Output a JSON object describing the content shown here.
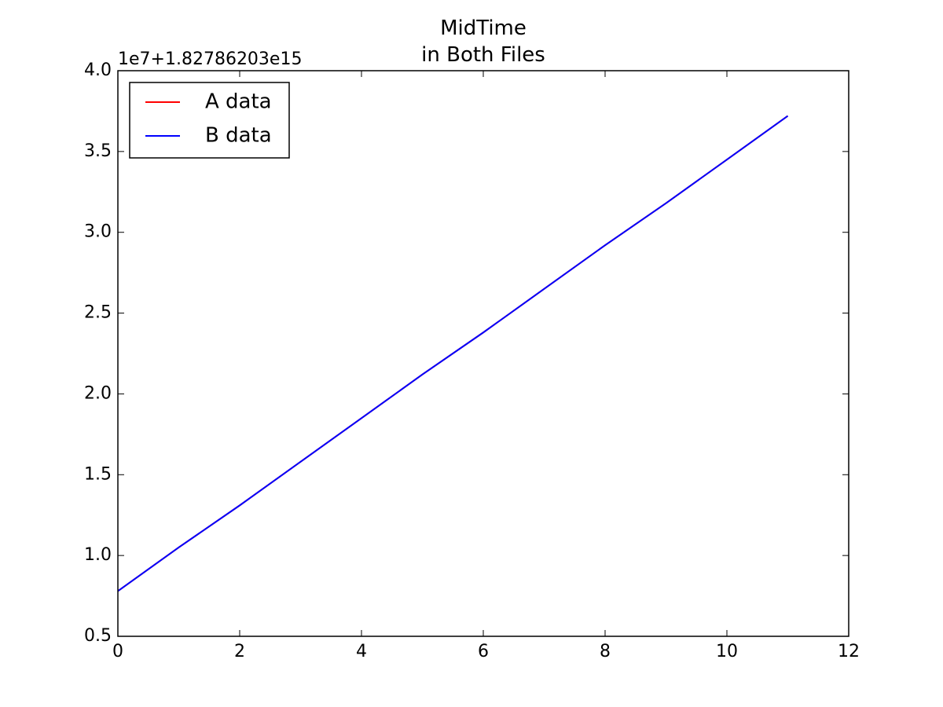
{
  "chart_data": {
    "type": "line",
    "title": "MidTime\nin Both Files",
    "y_offset_text": "1e7+1.82786203e15",
    "x": [
      0,
      1,
      2,
      3,
      4,
      5,
      6,
      7,
      8,
      9,
      10,
      11
    ],
    "series": [
      {
        "name": "A data",
        "color": "#ff0000",
        "values": [
          0.78,
          1.05,
          1.31,
          1.58,
          1.85,
          2.12,
          2.38,
          2.65,
          2.92,
          3.18,
          3.45,
          3.72
        ]
      },
      {
        "name": "B data",
        "color": "#0000ff",
        "values": [
          0.78,
          1.05,
          1.31,
          1.58,
          1.85,
          2.12,
          2.38,
          2.65,
          2.92,
          3.18,
          3.45,
          3.72
        ]
      }
    ],
    "xlim": [
      0,
      12
    ],
    "xticks": [
      0,
      2,
      4,
      6,
      8,
      10,
      12
    ],
    "ylim": [
      0.5,
      4.0
    ],
    "yticks": [
      0.5,
      {
        "value": 1,
        "label": "1.0"
      },
      1.5,
      {
        "value": 2,
        "label": "2.0"
      },
      2.5,
      {
        "value": 3,
        "label": "3.0"
      },
      3.5,
      {
        "value": 4,
        "label": "4.0"
      }
    ],
    "grid": false,
    "legend": "upper left"
  }
}
